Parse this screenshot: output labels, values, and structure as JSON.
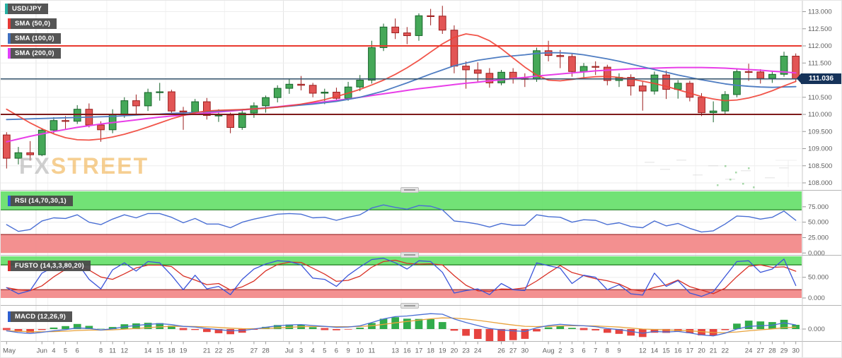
{
  "legend": {
    "symbol": "USD/JPY",
    "sma50": "SMA (50,0)",
    "sma100": "SMA (100,0)",
    "sma200": "SMA (200,0)"
  },
  "panels": {
    "rsi": {
      "label": "RSI (14,70,30,1)"
    },
    "stoch": {
      "label": "FUSTO (14,3,3,80,20)"
    },
    "macd": {
      "label": "MACD (12,26,9)"
    }
  },
  "price_axis": {
    "current": "111.036"
  },
  "watermark": {
    "fx": "FX",
    "street": "STREET"
  },
  "colors": {
    "up_fill": "#45a858",
    "up_stroke": "#17632a",
    "down_fill": "#e25555",
    "down_stroke": "#9c1f1f",
    "sma50": "#ef4336",
    "sma100": "#4f7dc2",
    "sma200": "#e83ee8",
    "level_hi": "#e9392e",
    "level_lo": "#7e1a1a",
    "cur_line": "#33526b",
    "cur_box": "#16335a",
    "band_green": "#66e06a",
    "band_red": "#f28a8a",
    "band_green_edge": "#1a7a1a",
    "band_red_edge": "#a03030",
    "rsi_line": "#4a6fd4",
    "stoch_k": "#3b55d9",
    "stoch_d": "#d93025",
    "macd_line": "#4a6fd4",
    "macd_signal": "#e8a33c",
    "hist_pos": "#26a641",
    "hist_neg": "#e53935",
    "grid": "#ededed",
    "vgrid_week": "#f2f2f2",
    "vgrid_month": "#e3e3e3",
    "separator": "#b5b5b5",
    "axis_text": "#5f5f5f",
    "tick": "#9a9a9a",
    "legend_symbol": "#26b0a2",
    "legend_sma50": "#e53935",
    "legend_sma100": "#3f6fbf",
    "legend_sma200": "#e040fb",
    "legend_rsi": "#2d5fd0",
    "legend_stoch": "#d32f2f",
    "legend_macd": "#2d5fd0"
  },
  "chart_data": {
    "type": "candlestick",
    "symbol": "USD/JPY",
    "timeframe_labels_visible": true,
    "ylim": [
      107.95,
      113.32
    ],
    "price_ticks": [
      [
        113.0,
        "113.000"
      ],
      [
        112.5,
        "112.500"
      ],
      [
        112.0,
        "112.000"
      ],
      [
        111.5,
        "111.500"
      ],
      [
        111.0,
        "111.000"
      ],
      [
        110.5,
        "110.500"
      ],
      [
        110.0,
        "110.000"
      ],
      [
        109.5,
        "109.500"
      ],
      [
        109.0,
        "109.000"
      ],
      [
        108.5,
        "108.500"
      ],
      [
        108.0,
        "108.000"
      ]
    ],
    "levels": [
      {
        "value": 112.0,
        "role": "resistance"
      },
      {
        "value": 110.0,
        "role": "support"
      }
    ],
    "current_price": 111.036,
    "x_labels": [
      [
        "May",
        0
      ],
      [
        "Jun",
        3
      ],
      [
        "4",
        4
      ],
      [
        "5",
        5
      ],
      [
        "6",
        6
      ],
      [
        "8",
        8
      ],
      [
        "11",
        9
      ],
      [
        "12",
        10
      ],
      [
        "14",
        12
      ],
      [
        "15",
        13
      ],
      [
        "18",
        14
      ],
      [
        "19",
        15
      ],
      [
        "21",
        17
      ],
      [
        "22",
        18
      ],
      [
        "25",
        19
      ],
      [
        "27",
        21
      ],
      [
        "28",
        22
      ],
      [
        "Jul",
        24
      ],
      [
        "3",
        25
      ],
      [
        "4",
        26
      ],
      [
        "5",
        27
      ],
      [
        "6",
        28
      ],
      [
        "9",
        29
      ],
      [
        "10",
        30
      ],
      [
        "11",
        31
      ],
      [
        "13",
        33
      ],
      [
        "16",
        34
      ],
      [
        "17",
        35
      ],
      [
        "18",
        36
      ],
      [
        "19",
        37
      ],
      [
        "20",
        38
      ],
      [
        "23",
        39
      ],
      [
        "24",
        40
      ],
      [
        "26",
        42
      ],
      [
        "27",
        43
      ],
      [
        "30",
        44
      ],
      [
        "Aug",
        46
      ],
      [
        "2",
        47
      ],
      [
        "3",
        48
      ],
      [
        "6",
        49
      ],
      [
        "7",
        50
      ],
      [
        "8",
        51
      ],
      [
        "9",
        52
      ],
      [
        "12",
        54
      ],
      [
        "14",
        55
      ],
      [
        "15",
        56
      ],
      [
        "16",
        57
      ],
      [
        "17",
        58
      ],
      [
        "20",
        59
      ],
      [
        "21",
        60
      ],
      [
        "22",
        61
      ],
      [
        "24",
        63
      ],
      [
        "27",
        64
      ],
      [
        "28",
        65
      ],
      [
        "29",
        66
      ],
      [
        "30",
        67
      ]
    ],
    "week_gridline_indices": [
      4,
      9,
      14,
      19,
      24,
      29,
      34,
      39,
      44,
      49,
      54,
      59,
      64
    ],
    "month_gridline_indices": [
      3,
      24,
      46
    ],
    "candles": [
      [
        109.4,
        109.48,
        108.42,
        108.72
      ],
      [
        108.72,
        109.05,
        108.54,
        108.88
      ],
      [
        108.88,
        109.22,
        108.65,
        108.82
      ],
      [
        108.82,
        109.6,
        108.78,
        109.54
      ],
      [
        109.54,
        109.92,
        109.45,
        109.82
      ],
      [
        109.82,
        109.95,
        109.55,
        109.8
      ],
      [
        109.8,
        110.27,
        109.72,
        110.15
      ],
      [
        110.15,
        110.32,
        109.62,
        109.69
      ],
      [
        109.69,
        109.8,
        109.2,
        109.55
      ],
      [
        109.55,
        110.15,
        109.45,
        110.01
      ],
      [
        110.01,
        110.5,
        109.9,
        110.4
      ],
      [
        110.4,
        110.58,
        110.0,
        110.25
      ],
      [
        110.25,
        110.75,
        110.1,
        110.64
      ],
      [
        110.64,
        110.92,
        110.4,
        110.66
      ],
      [
        110.66,
        110.72,
        110.0,
        110.1
      ],
      [
        110.1,
        110.22,
        109.55,
        110.07
      ],
      [
        110.07,
        110.45,
        109.98,
        110.37
      ],
      [
        110.37,
        110.48,
        109.85,
        109.97
      ],
      [
        109.97,
        110.15,
        109.78,
        109.98
      ],
      [
        109.98,
        110.05,
        109.45,
        109.62
      ],
      [
        109.62,
        110.12,
        109.55,
        110.04
      ],
      [
        110.04,
        110.35,
        109.9,
        110.25
      ],
      [
        110.25,
        110.55,
        110.05,
        110.49
      ],
      [
        110.49,
        110.85,
        110.35,
        110.76
      ],
      [
        110.76,
        111.05,
        110.6,
        110.88
      ],
      [
        110.88,
        111.12,
        110.7,
        110.85
      ],
      [
        110.85,
        110.92,
        110.5,
        110.62
      ],
      [
        110.62,
        110.75,
        110.3,
        110.65
      ],
      [
        110.65,
        110.78,
        110.38,
        110.47
      ],
      [
        110.47,
        110.95,
        110.4,
        110.8
      ],
      [
        110.8,
        111.15,
        110.68,
        111.0
      ],
      [
        111.0,
        112.15,
        110.9,
        111.95
      ],
      [
        111.95,
        112.65,
        111.85,
        112.55
      ],
      [
        112.55,
        112.8,
        112.2,
        112.38
      ],
      [
        112.38,
        112.55,
        112.05,
        112.3
      ],
      [
        112.3,
        112.95,
        112.15,
        112.88
      ],
      [
        112.88,
        113.08,
        112.6,
        112.87
      ],
      [
        112.87,
        113.17,
        112.35,
        112.46
      ],
      [
        112.46,
        112.6,
        111.2,
        111.41
      ],
      [
        111.41,
        111.55,
        110.75,
        111.3
      ],
      [
        111.3,
        111.52,
        110.95,
        111.2
      ],
      [
        111.2,
        111.35,
        110.78,
        110.92
      ],
      [
        110.92,
        111.3,
        110.85,
        111.23
      ],
      [
        111.23,
        111.35,
        110.9,
        111.05
      ],
      [
        111.05,
        111.2,
        110.8,
        111.03
      ],
      [
        111.03,
        111.95,
        110.95,
        111.86
      ],
      [
        111.86,
        112.15,
        111.55,
        111.72
      ],
      [
        111.72,
        111.88,
        111.35,
        111.69
      ],
      [
        111.69,
        111.78,
        111.1,
        111.25
      ],
      [
        111.25,
        111.5,
        111.08,
        111.4
      ],
      [
        111.4,
        111.55,
        111.15,
        111.38
      ],
      [
        111.38,
        111.45,
        110.85,
        110.99
      ],
      [
        110.99,
        111.2,
        110.8,
        111.08
      ],
      [
        111.08,
        111.17,
        110.55,
        110.83
      ],
      [
        110.83,
        110.95,
        110.11,
        110.68
      ],
      [
        110.68,
        111.25,
        110.58,
        111.15
      ],
      [
        111.15,
        111.28,
        110.45,
        110.73
      ],
      [
        110.73,
        111.0,
        110.46,
        110.91
      ],
      [
        110.91,
        110.98,
        110.38,
        110.5
      ],
      [
        110.5,
        110.62,
        109.95,
        110.05
      ],
      [
        110.05,
        110.38,
        109.77,
        110.1
      ],
      [
        110.1,
        110.68,
        110.0,
        110.58
      ],
      [
        110.58,
        111.35,
        110.5,
        111.25
      ],
      [
        111.25,
        111.48,
        110.98,
        111.24
      ],
      [
        111.24,
        111.32,
        110.9,
        111.05
      ],
      [
        111.05,
        111.28,
        110.92,
        111.17
      ],
      [
        111.17,
        111.83,
        111.1,
        111.7
      ],
      [
        111.7,
        111.78,
        110.95,
        111.04
      ]
    ],
    "sma50": [
      110.15,
      109.95,
      109.75,
      109.58,
      109.43,
      109.32,
      109.26,
      109.25,
      109.28,
      109.34,
      109.42,
      109.52,
      109.63,
      109.75,
      109.87,
      109.97,
      110.05,
      110.1,
      110.12,
      110.13,
      110.14,
      110.16,
      110.18,
      110.21,
      110.25,
      110.3,
      110.36,
      110.43,
      110.52,
      110.62,
      110.73,
      110.86,
      111.0,
      111.17,
      111.36,
      111.58,
      111.82,
      112.06,
      112.25,
      112.35,
      112.3,
      112.15,
      111.92,
      111.65,
      111.38,
      111.15,
      111.0,
      110.98,
      111.02,
      111.07,
      111.1,
      111.11,
      111.08,
      111.03,
      110.97,
      110.9,
      110.82,
      110.72,
      110.62,
      110.52,
      110.45,
      110.4,
      110.42,
      110.48,
      110.57,
      110.69,
      110.83,
      110.96
    ],
    "sma100": [
      109.85,
      109.86,
      109.87,
      109.88,
      109.89,
      109.9,
      109.91,
      109.92,
      109.93,
      109.94,
      109.96,
      109.98,
      110.0,
      110.01,
      110.03,
      110.04,
      110.06,
      110.08,
      110.1,
      110.12,
      110.14,
      110.16,
      110.19,
      110.21,
      110.24,
      110.27,
      110.3,
      110.34,
      110.38,
      110.44,
      110.5,
      110.59,
      110.68,
      110.8,
      110.92,
      111.05,
      111.18,
      111.3,
      111.42,
      111.5,
      111.58,
      111.63,
      111.68,
      111.71,
      111.74,
      111.78,
      111.8,
      111.8,
      111.78,
      111.74,
      111.68,
      111.62,
      111.55,
      111.47,
      111.39,
      111.31,
      111.23,
      111.15,
      111.08,
      111.01,
      110.95,
      110.89,
      110.85,
      110.82,
      110.8,
      110.79,
      110.8,
      110.81
    ],
    "sma200": [
      109.2,
      109.28,
      109.36,
      109.43,
      109.5,
      109.56,
      109.62,
      109.67,
      109.72,
      109.76,
      109.8,
      109.84,
      109.88,
      109.92,
      109.95,
      109.98,
      110.01,
      110.04,
      110.07,
      110.1,
      110.13,
      110.16,
      110.19,
      110.22,
      110.26,
      110.29,
      110.33,
      110.37,
      110.41,
      110.45,
      110.5,
      110.55,
      110.6,
      110.65,
      110.7,
      110.75,
      110.79,
      110.83,
      110.87,
      110.91,
      110.94,
      110.98,
      111.01,
      111.05,
      111.08,
      111.12,
      111.15,
      111.18,
      111.21,
      111.24,
      111.27,
      111.29,
      111.31,
      111.33,
      111.34,
      111.35,
      111.36,
      111.37,
      111.37,
      111.37,
      111.36,
      111.35,
      111.33,
      111.31,
      111.29,
      111.26,
      111.24,
      111.21
    ],
    "rsi": {
      "ticks": [
        [
          75,
          "75.000"
        ],
        [
          50,
          "50.000"
        ],
        [
          25,
          "25.000"
        ],
        [
          0,
          "0.000"
        ]
      ],
      "bands": {
        "upper": [
          70,
          100
        ],
        "lower": [
          0,
          30
        ]
      },
      "values": [
        46,
        35,
        38,
        52,
        57,
        56,
        62,
        50,
        46,
        55,
        62,
        57,
        64,
        64,
        58,
        49,
        56,
        47,
        47,
        41,
        50,
        55,
        59,
        63,
        64,
        63,
        57,
        58,
        53,
        58,
        62,
        73,
        78,
        74,
        71,
        77,
        76,
        70,
        52,
        50,
        47,
        42,
        48,
        45,
        45,
        62,
        59,
        58,
        50,
        54,
        53,
        46,
        49,
        43,
        41,
        52,
        44,
        48,
        40,
        34,
        36,
        47,
        60,
        59,
        55,
        58,
        68,
        53
      ]
    },
    "stoch": {
      "ticks": [
        [
          50,
          "50.000"
        ],
        [
          0,
          "0.000"
        ]
      ],
      "bands": {
        "upper": [
          80,
          100
        ],
        "lower": [
          0,
          20
        ]
      },
      "k_values": [
        25,
        10,
        18,
        60,
        75,
        72,
        85,
        45,
        22,
        68,
        85,
        65,
        88,
        85,
        55,
        20,
        55,
        22,
        28,
        8,
        45,
        70,
        82,
        90,
        88,
        80,
        48,
        45,
        28,
        55,
        75,
        93,
        96,
        85,
        70,
        90,
        88,
        62,
        12,
        18,
        22,
        8,
        35,
        20,
        18,
        85,
        78,
        72,
        35,
        55,
        50,
        20,
        32,
        10,
        7,
        60,
        28,
        42,
        12,
        4,
        15,
        52,
        88,
        90,
        62,
        70,
        94,
        30
      ]
    },
    "macd": {
      "ticks": [
        [
          0,
          "0.000"
        ]
      ],
      "values": [
        -0.06,
        -0.12,
        -0.15,
        -0.11,
        -0.06,
        -0.02,
        0.04,
        0.02,
        -0.03,
        0.01,
        0.08,
        0.12,
        0.16,
        0.18,
        0.15,
        0.09,
        0.07,
        0.02,
        -0.02,
        -0.06,
        -0.05,
        0.0,
        0.06,
        0.11,
        0.14,
        0.15,
        0.12,
        0.09,
        0.06,
        0.07,
        0.11,
        0.22,
        0.34,
        0.42,
        0.44,
        0.48,
        0.52,
        0.5,
        0.34,
        0.22,
        0.12,
        0.02,
        -0.03,
        -0.06,
        -0.08,
        0.04,
        0.12,
        0.16,
        0.13,
        0.11,
        0.08,
        0.02,
        -0.02,
        -0.08,
        -0.14,
        -0.08,
        -0.1,
        -0.08,
        -0.13,
        -0.2,
        -0.23,
        -0.14,
        0.0,
        0.09,
        0.11,
        0.13,
        0.21,
        0.14
      ]
    }
  }
}
